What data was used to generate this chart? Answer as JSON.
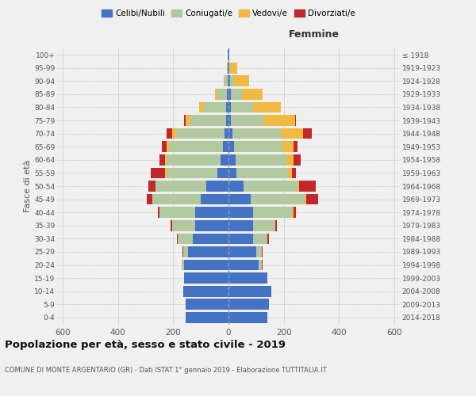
{
  "age_groups": [
    "0-4",
    "5-9",
    "10-14",
    "15-19",
    "20-24",
    "25-29",
    "30-34",
    "35-39",
    "40-44",
    "45-49",
    "50-54",
    "55-59",
    "60-64",
    "65-69",
    "70-74",
    "75-79",
    "80-84",
    "85-89",
    "90-94",
    "95-99",
    "100+"
  ],
  "birth_years": [
    "2014-2018",
    "2009-2013",
    "2004-2008",
    "1999-2003",
    "1994-1998",
    "1989-1993",
    "1984-1988",
    "1979-1983",
    "1974-1978",
    "1969-1973",
    "1964-1968",
    "1959-1963",
    "1954-1958",
    "1949-1953",
    "1944-1948",
    "1939-1943",
    "1934-1938",
    "1929-1933",
    "1924-1928",
    "1919-1923",
    "≤ 1918"
  ],
  "males": {
    "celibi": [
      155,
      155,
      165,
      160,
      160,
      145,
      130,
      120,
      120,
      100,
      80,
      40,
      30,
      20,
      15,
      10,
      10,
      5,
      3,
      2,
      2
    ],
    "coniugati": [
      0,
      0,
      0,
      0,
      8,
      20,
      55,
      85,
      130,
      175,
      185,
      185,
      195,
      195,
      175,
      130,
      80,
      35,
      12,
      3,
      0
    ],
    "vedovi": [
      0,
      0,
      0,
      0,
      0,
      0,
      0,
      0,
      0,
      0,
      0,
      5,
      5,
      10,
      15,
      15,
      15,
      8,
      3,
      0,
      0
    ],
    "divorziati": [
      0,
      0,
      0,
      0,
      2,
      2,
      2,
      5,
      5,
      20,
      25,
      50,
      20,
      15,
      20,
      5,
      0,
      0,
      0,
      0,
      0
    ]
  },
  "females": {
    "nubili": [
      140,
      145,
      155,
      140,
      110,
      100,
      90,
      90,
      90,
      80,
      55,
      30,
      25,
      20,
      15,
      10,
      10,
      8,
      5,
      2,
      2
    ],
    "coniugate": [
      0,
      0,
      0,
      2,
      10,
      20,
      50,
      80,
      140,
      195,
      195,
      185,
      185,
      175,
      175,
      120,
      80,
      40,
      15,
      5,
      0
    ],
    "vedove": [
      0,
      0,
      0,
      0,
      0,
      0,
      0,
      0,
      5,
      5,
      5,
      15,
      25,
      40,
      80,
      110,
      100,
      75,
      55,
      25,
      2
    ],
    "divorziate": [
      0,
      0,
      0,
      0,
      2,
      2,
      5,
      5,
      10,
      45,
      60,
      15,
      25,
      15,
      30,
      5,
      0,
      0,
      0,
      0,
      0
    ]
  },
  "colors": {
    "celibi": "#4472C4",
    "coniugati": "#b2c9a0",
    "vedovi": "#f0b942",
    "divorziati": "#c0282a"
  },
  "title": "Popolazione per età, sesso e stato civile - 2019",
  "subtitle": "COMUNE DI MONTE ARGENTARIO (GR) - Dati ISTAT 1° gennaio 2019 - Elaborazione TUTTITALIA.IT",
  "xlabel_right": "Femmine",
  "ylabel_left": "Fasce di età",
  "xlim": 620,
  "background_color": "#f0f0f0",
  "grid_color": "#cccccc"
}
